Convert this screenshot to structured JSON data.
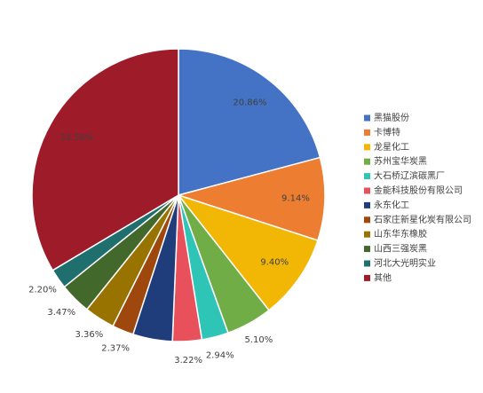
{
  "chart_data": {
    "type": "pie",
    "categories": [
      "黑猫股份",
      "卡博特",
      "龙星化工",
      "苏州宝华炭黑",
      "大石桥辽滨碳黑厂",
      "金能科技股份有限公司",
      "永东化工",
      "石家庄新星化炭有限公司",
      "山东华东橡胶",
      "山西三强炭黑",
      "河北大光明实业",
      "其他"
    ],
    "values": [
      20.86,
      9.14,
      9.4,
      5.1,
      2.94,
      3.22,
      4.36,
      2.37,
      3.36,
      3.47,
      2.2,
      33.58
    ],
    "value_labels": [
      "20.86%",
      "9.14%",
      "9.40%",
      "5.10%",
      "2.94%",
      "3.22%",
      null,
      "2.37%",
      "3.36%",
      "3.47%",
      "2.20%",
      "33.58%"
    ],
    "colors": [
      "#4472c4",
      "#ed7d31",
      "#f2b705",
      "#70ad47",
      "#2ec4b6",
      "#e8505b",
      "#1f3d7a",
      "#9e480e",
      "#997300",
      "#43682b",
      "#1f6f6f",
      "#9e1b2a"
    ]
  }
}
